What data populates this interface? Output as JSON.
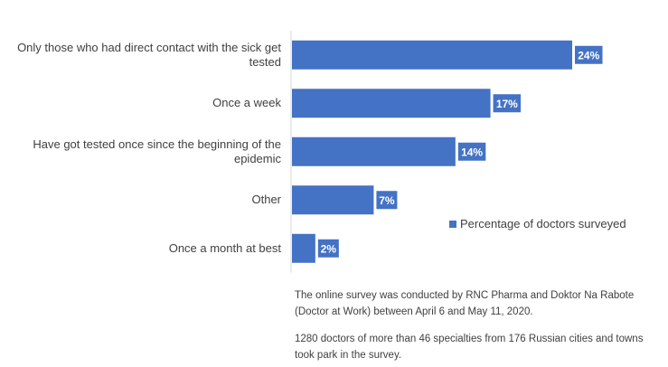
{
  "chart_data": {
    "type": "bar",
    "orientation": "horizontal",
    "categories": [
      "Only those who had direct contact with the sick get tested",
      "Once a week",
      "Have got tested once since the beginning of the epidemic",
      "Other",
      "Once a month at best"
    ],
    "series": [
      {
        "name": "Percentage of doctors surveyed",
        "values": [
          24,
          17,
          14,
          7,
          2
        ],
        "labels": [
          "24%",
          "17%",
          "14%",
          "7%",
          "2%"
        ]
      }
    ],
    "xlim": [
      0,
      25
    ],
    "grid": false,
    "legend_position": "right",
    "bar_color": "#4472c4"
  },
  "notes": {
    "survey": "The online survey was conducted by RNC Pharma and Doktor Na Rabote (Doctor at Work) between April 6 and May 11, 2020.",
    "sample": "1280 doctors of more than 46 specialties from 176 Russian cities and towns took park in the survey."
  }
}
